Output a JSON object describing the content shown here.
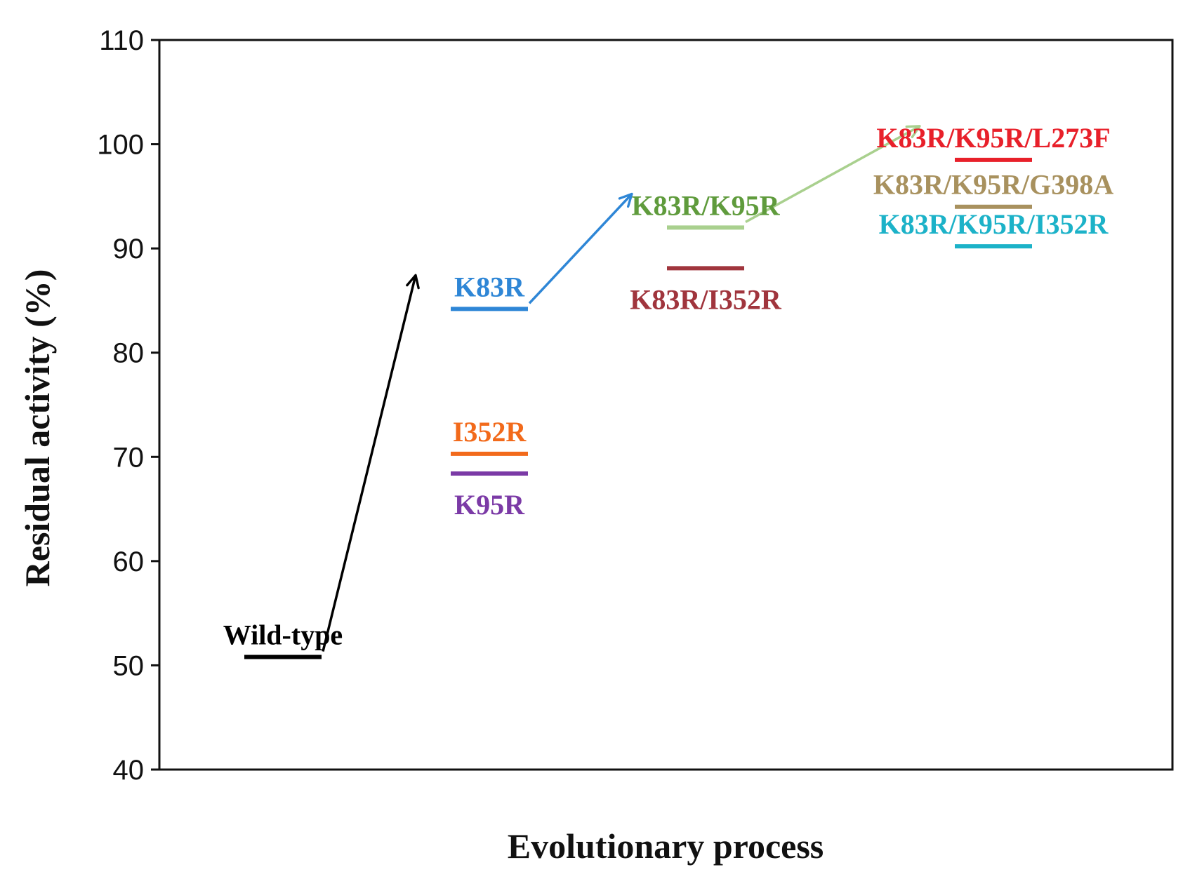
{
  "chart_data": {
    "type": "scatter",
    "title": "",
    "xlabel": "Evolutionary process",
    "ylabel": "Residual activity (%)",
    "ylim": [
      40,
      110
    ],
    "yticks": [
      40,
      50,
      60,
      70,
      80,
      90,
      100,
      110
    ],
    "stages": [
      1,
      2,
      3,
      4
    ],
    "grid": false,
    "points": [
      {
        "id": "wild-type",
        "label": "Wild-type",
        "stage": 1,
        "value": 50.8,
        "color": "#000000",
        "label_pos": "above"
      },
      {
        "id": "k83r",
        "label": "K83R",
        "stage": 2,
        "value": 84.2,
        "color": "#2e86d6",
        "label_pos": "above"
      },
      {
        "id": "i352r",
        "label": "I352R",
        "stage": 2,
        "value": 70.3,
        "color": "#f26a1b",
        "label_pos": "above"
      },
      {
        "id": "k95r",
        "label": "K95R",
        "stage": 2,
        "value": 68.4,
        "color": "#7b3aa6",
        "label_pos": "below"
      },
      {
        "id": "k83r-k95r",
        "label": "K83R/K95R",
        "stage": 3,
        "value": 92.0,
        "color": "#a9d08e",
        "label_color": "#5f9b3c",
        "label_pos": "above"
      },
      {
        "id": "k83r-i352r",
        "label": "K83R/I352R",
        "stage": 3,
        "value": 88.1,
        "color": "#a0353d",
        "label_pos": "below"
      },
      {
        "id": "k83r-k95r-l273f",
        "label": "K83R/K95R/L273F",
        "stage": 4,
        "value": 98.5,
        "color": "#e8202a",
        "label_pos": "above"
      },
      {
        "id": "k83r-k95r-g398a",
        "label": "K83R/K95R/G398A",
        "stage": 4,
        "value": 94.0,
        "color": "#a8915e",
        "label_pos": "above"
      },
      {
        "id": "k83r-k95r-i352r",
        "label": "K83R/K95R/I352R",
        "stage": 4,
        "value": 90.2,
        "color": "#1cb2c8",
        "label_pos": "above"
      }
    ],
    "arrows": [
      {
        "from": "wild-type",
        "to": "k83r",
        "color": "#000000"
      },
      {
        "from": "k83r",
        "to": "k83r-k95r",
        "color": "#2e86d6"
      },
      {
        "from": "k83r-k95r",
        "to": "k83r-k95r-l273f",
        "color": "#a9d08e"
      }
    ]
  }
}
